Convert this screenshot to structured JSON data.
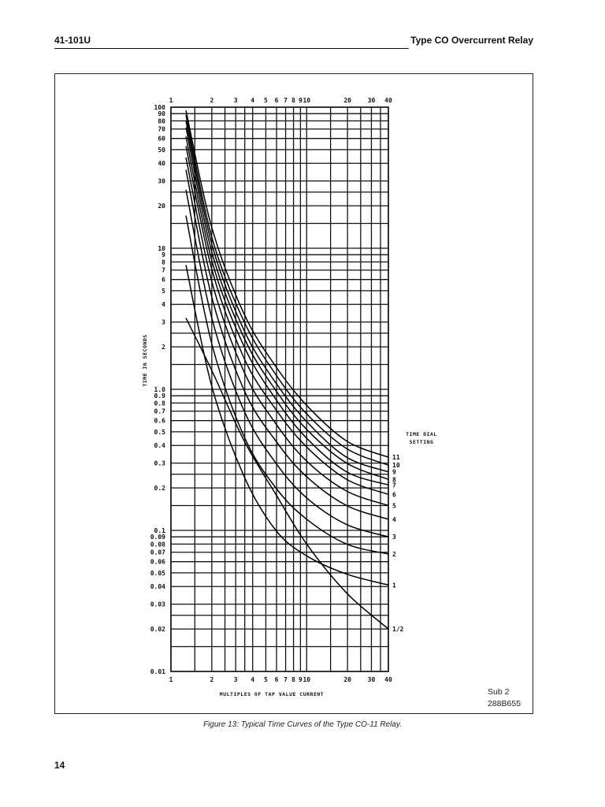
{
  "header": {
    "doc_number": "41-101U",
    "title": "Type CO Overcurrent Relay"
  },
  "figure": {
    "sub_note_line1": "Sub 2",
    "sub_note_line2": "288B655",
    "caption": "Figure 13:  Typical Time Curves of the Type CO-11 Relay."
  },
  "page_number": "14",
  "chart_data": {
    "type": "line",
    "title": "Typical Time Curves of the Type CO-11 Relay",
    "xlabel": "MULTIPLES OF TAP VALUE CURRENT",
    "ylabel": "TIME IN SECONDS",
    "xscale": "log",
    "yscale": "log",
    "xlim": [
      1,
      40
    ],
    "ylim": [
      0.01,
      100
    ],
    "grid": true,
    "legend_title": "TIME DIAL SETTING",
    "legend_position": "right, labels at curve ends",
    "x_ticks": [
      "1",
      "2",
      "3",
      "4",
      "5",
      "6",
      "7",
      "8",
      "9",
      "10",
      "20",
      "30",
      "40"
    ],
    "x_tick_values": [
      1,
      2,
      3,
      4,
      5,
      6,
      7,
      8,
      9,
      10,
      20,
      30,
      40
    ],
    "x_top_ticks": [
      "1",
      "2",
      "3",
      "4",
      "5",
      "6",
      "7",
      "8",
      "9",
      "10",
      "20",
      "30",
      "40"
    ],
    "y_ticks": [
      "100",
      "90",
      "80",
      "70",
      "60",
      "50",
      "40",
      "30",
      "20",
      "10",
      "9",
      "8",
      "7",
      "6",
      "5",
      "4",
      "3",
      "2",
      "1.0",
      "0.9",
      "0.8",
      "0.7",
      "0.6",
      "0.5",
      "0.4",
      "0.3",
      "0.2",
      "0.1",
      "0.09",
      "0.08",
      "0.07",
      "0.06",
      "0.05",
      "0.04",
      "0.03",
      "0.02",
      "0.01"
    ],
    "y_tick_values": [
      100,
      90,
      80,
      70,
      60,
      50,
      40,
      30,
      20,
      10,
      9,
      8,
      7,
      6,
      5,
      4,
      3,
      2,
      1,
      0.9,
      0.8,
      0.7,
      0.6,
      0.5,
      0.4,
      0.3,
      0.2,
      0.1,
      0.09,
      0.08,
      0.07,
      0.06,
      0.05,
      0.04,
      0.03,
      0.02,
      0.01
    ],
    "x": [
      1.29,
      2.0,
      3.47,
      5.93,
      10,
      19.7,
      40
    ],
    "series": [
      {
        "name": "11",
        "values": [
          95,
          14,
          3.4,
          1.45,
          0.77,
          0.43,
          0.33
        ]
      },
      {
        "name": "10",
        "values": [
          88,
          12,
          3.0,
          1.27,
          0.67,
          0.38,
          0.29
        ]
      },
      {
        "name": "9",
        "values": [
          80,
          10.7,
          2.6,
          1.11,
          0.59,
          0.33,
          0.26
        ]
      },
      {
        "name": "8",
        "values": [
          72,
          9.4,
          2.3,
          0.98,
          0.52,
          0.3,
          0.23
        ]
      },
      {
        "name": "7",
        "values": [
          62,
          8.2,
          2.0,
          0.85,
          0.45,
          0.26,
          0.21
        ]
      },
      {
        "name": "6",
        "values": [
          53,
          7.1,
          1.65,
          0.72,
          0.39,
          0.23,
          0.18
        ]
      },
      {
        "name": "5",
        "values": [
          44,
          5.8,
          1.32,
          0.57,
          0.31,
          0.19,
          0.15
        ]
      },
      {
        "name": "4",
        "values": [
          36,
          4.5,
          0.98,
          0.43,
          0.24,
          0.15,
          0.12
        ]
      },
      {
        "name": "3",
        "values": [
          26,
          3.2,
          0.7,
          0.3,
          0.17,
          0.11,
          0.09
        ]
      },
      {
        "name": "2",
        "values": [
          17,
          2.1,
          0.46,
          0.2,
          0.12,
          0.08,
          0.068
        ]
      },
      {
        "name": "1",
        "values": [
          7.6,
          1.05,
          0.24,
          0.1,
          0.066,
          0.049,
          0.041
        ]
      },
      {
        "name": "1/2",
        "values": [
          3.2,
          1.36,
          0.43,
          0.18,
          0.08,
          0.036,
          0.02
        ]
      }
    ]
  }
}
